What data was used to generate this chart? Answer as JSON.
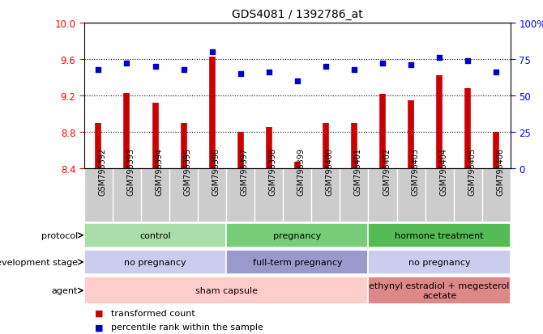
{
  "title": "GDS4081 / 1392786_at",
  "samples": [
    "GSM796392",
    "GSM796393",
    "GSM796394",
    "GSM796395",
    "GSM796396",
    "GSM796397",
    "GSM796398",
    "GSM796399",
    "GSM796400",
    "GSM796401",
    "GSM796402",
    "GSM796403",
    "GSM796404",
    "GSM796405",
    "GSM796406"
  ],
  "bar_values": [
    8.9,
    9.23,
    9.12,
    8.9,
    9.63,
    8.8,
    8.85,
    8.47,
    8.9,
    8.9,
    9.22,
    9.15,
    9.42,
    9.28,
    8.8
  ],
  "percentile_values": [
    68,
    72,
    70,
    68,
    80,
    65,
    66,
    60,
    70,
    68,
    72,
    71,
    76,
    74,
    66
  ],
  "ylim": [
    8.4,
    10.0
  ],
  "yticks": [
    8.4,
    8.8,
    9.2,
    9.6,
    10.0
  ],
  "y2ticks": [
    0,
    25,
    50,
    75,
    100
  ],
  "bar_color": "#CC0000",
  "scatter_color": "#0000CC",
  "sample_bg_color": "#CCCCCC",
  "protocol_groups": [
    {
      "label": "control",
      "start": 0,
      "end": 5,
      "color": "#AADDAA"
    },
    {
      "label": "pregnancy",
      "start": 5,
      "end": 10,
      "color": "#77CC77"
    },
    {
      "label": "hormone treatment",
      "start": 10,
      "end": 15,
      "color": "#55BB55"
    }
  ],
  "dev_stage_groups": [
    {
      "label": "no pregnancy",
      "start": 0,
      "end": 5,
      "color": "#CCCCEE"
    },
    {
      "label": "full-term pregnancy",
      "start": 5,
      "end": 10,
      "color": "#9999CC"
    },
    {
      "label": "no pregnancy",
      "start": 10,
      "end": 15,
      "color": "#CCCCEE"
    }
  ],
  "agent_groups": [
    {
      "label": "sham capsule",
      "start": 0,
      "end": 10,
      "color": "#FFCCCC"
    },
    {
      "label": "ethynyl estradiol + megesterol\nacetate",
      "start": 10,
      "end": 15,
      "color": "#DD8888"
    }
  ],
  "legend": [
    {
      "color": "#CC0000",
      "label": "transformed count"
    },
    {
      "color": "#0000CC",
      "label": "percentile rank within the sample"
    }
  ]
}
